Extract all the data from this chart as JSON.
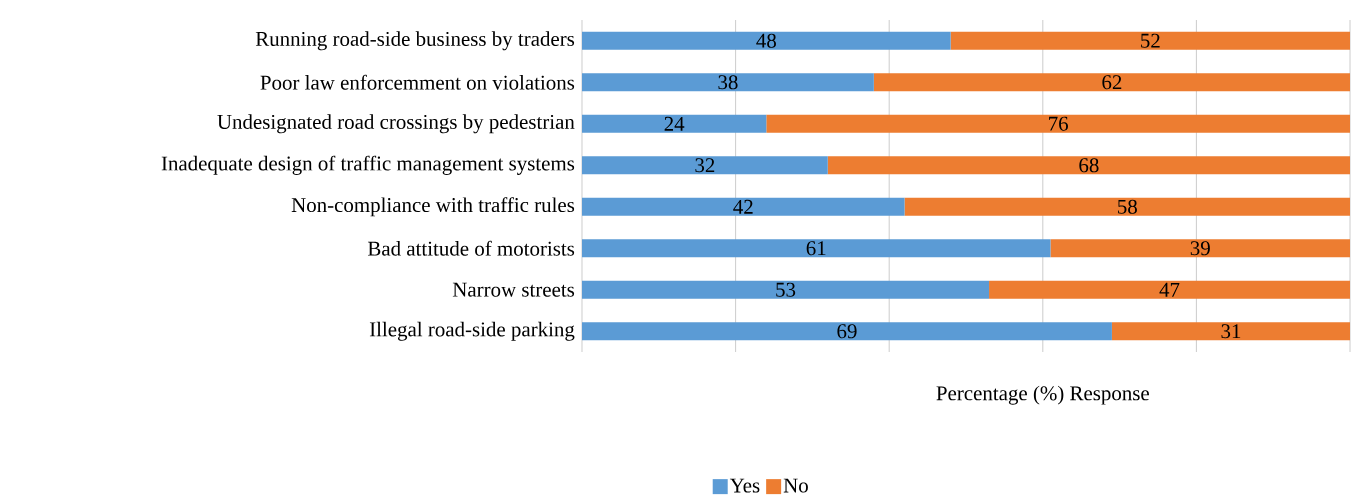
{
  "chart_data": {
    "type": "bar",
    "orientation": "horizontal",
    "stacked": true,
    "categories": [
      "Running road-side business by traders",
      "Poor law enforcemment on violations",
      "Undesignated road crossings by pedestrian",
      "Inadequate design of traffic management systems",
      "Non-compliance with traffic rules",
      "Bad attitude of motorists",
      "Narrow streets",
      "Illegal road-side parking"
    ],
    "series": [
      {
        "name": "Yes",
        "color": "#5b9bd5",
        "values": [
          48,
          38,
          24,
          32,
          42,
          61,
          53,
          69
        ]
      },
      {
        "name": "No",
        "color": "#ed7d31",
        "values": [
          52,
          62,
          76,
          68,
          58,
          39,
          47,
          31
        ]
      }
    ],
    "xlabel": "Percentage (%) Response",
    "xlim": [
      0,
      100
    ],
    "xticks": [
      {
        "value": 0,
        "label": null
      },
      {
        "value": 20,
        "label": null
      },
      {
        "value": 40,
        "label": null
      },
      {
        "value": 60,
        "label": null
      },
      {
        "value": 80,
        "label": null
      },
      {
        "value": 100,
        "label": null
      }
    ],
    "grid": "x",
    "data_labels": true,
    "legend": "bottom",
    "tick_labels": "y"
  }
}
